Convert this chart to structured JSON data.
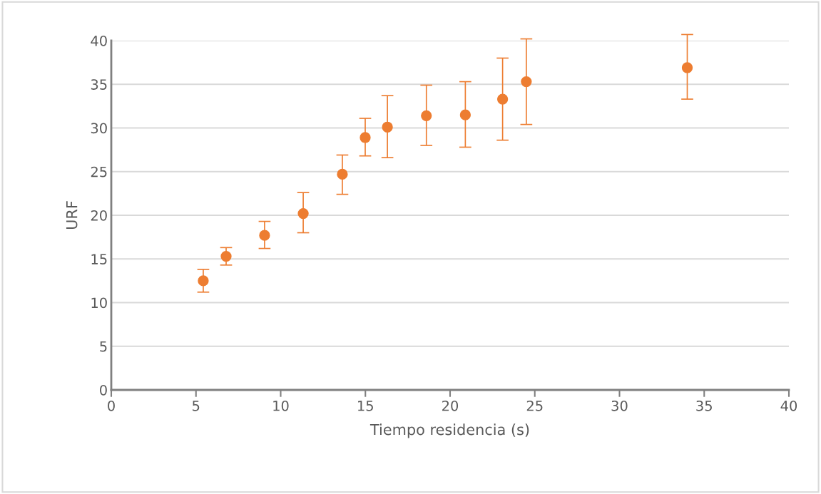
{
  "chart_data": {
    "type": "scatter",
    "xlabel": "Tiempo residencia (s)",
    "ylabel": "URF",
    "x": [
      5.43,
      6.78,
      9.05,
      11.33,
      13.64,
      14.99,
      16.3,
      18.6,
      20.9,
      23.1,
      24.5,
      34.0
    ],
    "values": [
      12.5,
      15.3,
      17.7,
      20.2,
      24.7,
      28.9,
      30.1,
      31.4,
      31.5,
      33.3,
      35.3,
      36.9
    ],
    "errors": [
      [
        11.2,
        13.8
      ],
      [
        14.3,
        16.3
      ],
      [
        16.2,
        19.3
      ],
      [
        18.0,
        22.6
      ],
      [
        22.4,
        26.9
      ],
      [
        26.8,
        31.1
      ],
      [
        26.6,
        33.7
      ],
      [
        28.0,
        34.9
      ],
      [
        27.8,
        35.3
      ],
      [
        28.6,
        38.0
      ],
      [
        30.4,
        40.2
      ],
      [
        33.3,
        40.7
      ]
    ],
    "color": "#ed7d31",
    "marker": "circle",
    "grid": "y",
    "xlim": [
      0,
      40
    ],
    "xticks": [
      0,
      5,
      10,
      15,
      20,
      25,
      30,
      35,
      40
    ],
    "ylim": [
      0,
      40
    ],
    "yticks": [
      0,
      5,
      10,
      15,
      20,
      25,
      30,
      35,
      40
    ]
  }
}
